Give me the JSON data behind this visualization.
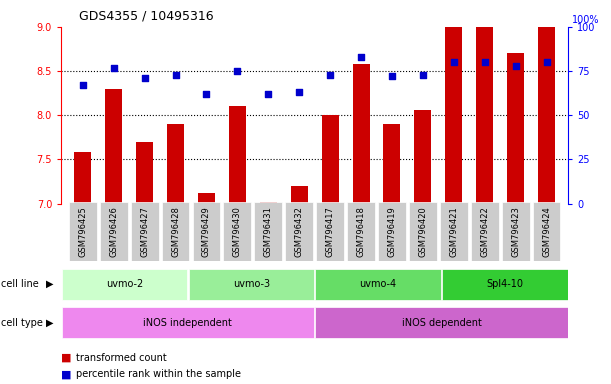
{
  "title": "GDS4355 / 10495316",
  "samples": [
    "GSM796425",
    "GSM796426",
    "GSM796427",
    "GSM796428",
    "GSM796429",
    "GSM796430",
    "GSM796431",
    "GSM796432",
    "GSM796417",
    "GSM796418",
    "GSM796419",
    "GSM796420",
    "GSM796421",
    "GSM796422",
    "GSM796423",
    "GSM796424"
  ],
  "transformed_count": [
    7.58,
    8.3,
    7.7,
    7.9,
    7.12,
    8.1,
    7.02,
    7.2,
    8.0,
    8.58,
    7.9,
    8.06,
    9.0,
    9.0,
    8.7,
    9.0
  ],
  "percentile_rank": [
    67,
    77,
    71,
    73,
    62,
    75,
    62,
    63,
    73,
    83,
    72,
    73,
    80,
    80,
    78,
    80
  ],
  "ylim_left": [
    7.0,
    9.0
  ],
  "ylim_right": [
    0,
    100
  ],
  "yticks_left": [
    7.0,
    7.5,
    8.0,
    8.5,
    9.0
  ],
  "yticks_right": [
    0,
    25,
    50,
    75,
    100
  ],
  "bar_color": "#cc0000",
  "dot_color": "#0000cc",
  "bar_bottom": 7.0,
  "cell_lines": [
    {
      "label": "uvmo-2",
      "start": 0,
      "end": 3,
      "color": "#ccffcc"
    },
    {
      "label": "uvmo-3",
      "start": 4,
      "end": 7,
      "color": "#99ee99"
    },
    {
      "label": "uvmo-4",
      "start": 8,
      "end": 11,
      "color": "#66dd66"
    },
    {
      "label": "Spl4-10",
      "start": 12,
      "end": 15,
      "color": "#33cc33"
    }
  ],
  "cell_types": [
    {
      "label": "iNOS independent",
      "start": 0,
      "end": 7,
      "color": "#ee88ee"
    },
    {
      "label": "iNOS dependent",
      "start": 8,
      "end": 15,
      "color": "#cc66cc"
    }
  ],
  "legend_items": [
    {
      "label": "transformed count",
      "color": "#cc0000"
    },
    {
      "label": "percentile rank within the sample",
      "color": "#0000cc"
    }
  ],
  "xlabel_box_color": "#cccccc",
  "grid_yticks": [
    7.5,
    8.0,
    8.5
  ],
  "title_fontsize": 9,
  "tick_fontsize": 7,
  "label_fontsize": 7,
  "sample_fontsize": 6
}
